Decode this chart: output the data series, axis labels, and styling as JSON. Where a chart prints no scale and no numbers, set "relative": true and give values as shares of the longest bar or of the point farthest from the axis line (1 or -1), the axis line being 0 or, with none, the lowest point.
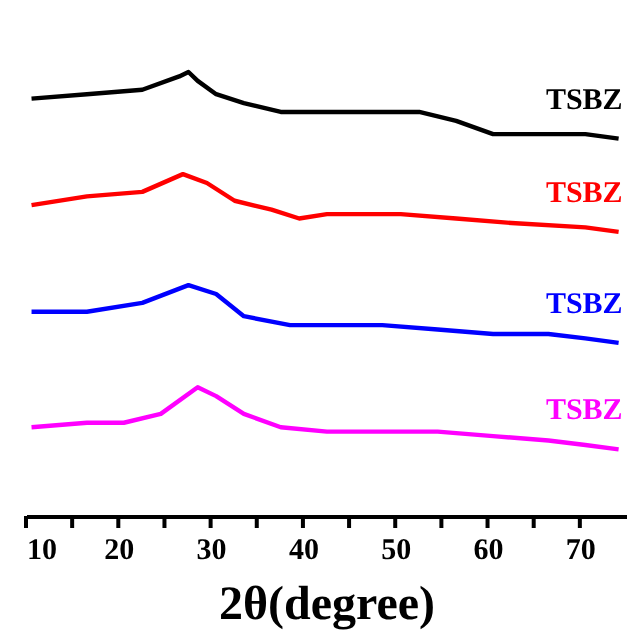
{
  "chart_data": {
    "type": "line",
    "xlabel": "2θ(degree)",
    "relative": true,
    "xlim": [
      10,
      75
    ],
    "xticks": [
      10,
      {
        "value": 15,
        "label": null
      },
      20,
      {
        "value": 25,
        "label": null
      },
      30,
      {
        "value": 35,
        "label": null
      },
      40,
      {
        "value": 45,
        "label": null
      },
      50,
      {
        "value": 55,
        "label": null
      },
      60,
      {
        "value": 65,
        "label": null
      },
      70
    ],
    "series": [
      {
        "name": "TSBZ",
        "color": "#000000",
        "x": [
          10.6,
          16.6,
          22.6,
          26.6,
          27.6,
          28.6,
          30.6,
          33.6,
          37.6,
          42.6,
          48.6,
          52.6,
          56.6,
          60.6,
          64.6,
          70.6,
          74.2
        ],
        "values": [
          0.94,
          0.95,
          0.96,
          0.99,
          1,
          0.98,
          0.95,
          0.93,
          0.91,
          0.91,
          0.91,
          0.91,
          0.89,
          0.86,
          0.86,
          0.86,
          0.85
        ]
      },
      {
        "name": "TSBZ",
        "color": "#ff0000",
        "x": [
          10.6,
          16.6,
          22.6,
          27,
          29.6,
          32.6,
          36.6,
          39.6,
          42.6,
          46.6,
          50.6,
          56.6,
          62.6,
          70.6,
          74.2
        ],
        "values": [
          0.7,
          0.72,
          0.73,
          0.77,
          0.75,
          0.71,
          0.69,
          0.67,
          0.68,
          0.68,
          0.68,
          0.67,
          0.66,
          0.65,
          0.64
        ]
      },
      {
        "name": "TSBZ",
        "color": "#0000ff",
        "x": [
          10.6,
          16.6,
          22.6,
          27.6,
          30.6,
          33.6,
          38.6,
          42.6,
          48.6,
          54.6,
          60.6,
          66.6,
          70.6,
          74.2
        ],
        "values": [
          0.46,
          0.46,
          0.48,
          0.52,
          0.5,
          0.45,
          0.43,
          0.43,
          0.43,
          0.42,
          0.41,
          0.41,
          0.4,
          0.39
        ]
      },
      {
        "name": "TSBZ",
        "color": "#ff00ff",
        "x": [
          10.6,
          16.6,
          20.6,
          24.6,
          28.6,
          30.6,
          33.6,
          37.6,
          42.6,
          48.6,
          54.6,
          60.6,
          66.6,
          70.6,
          74.2
        ],
        "values": [
          0.2,
          0.21,
          0.21,
          0.23,
          0.29,
          0.27,
          0.23,
          0.2,
          0.19,
          0.19,
          0.19,
          0.18,
          0.17,
          0.16,
          0.15
        ]
      }
    ]
  }
}
